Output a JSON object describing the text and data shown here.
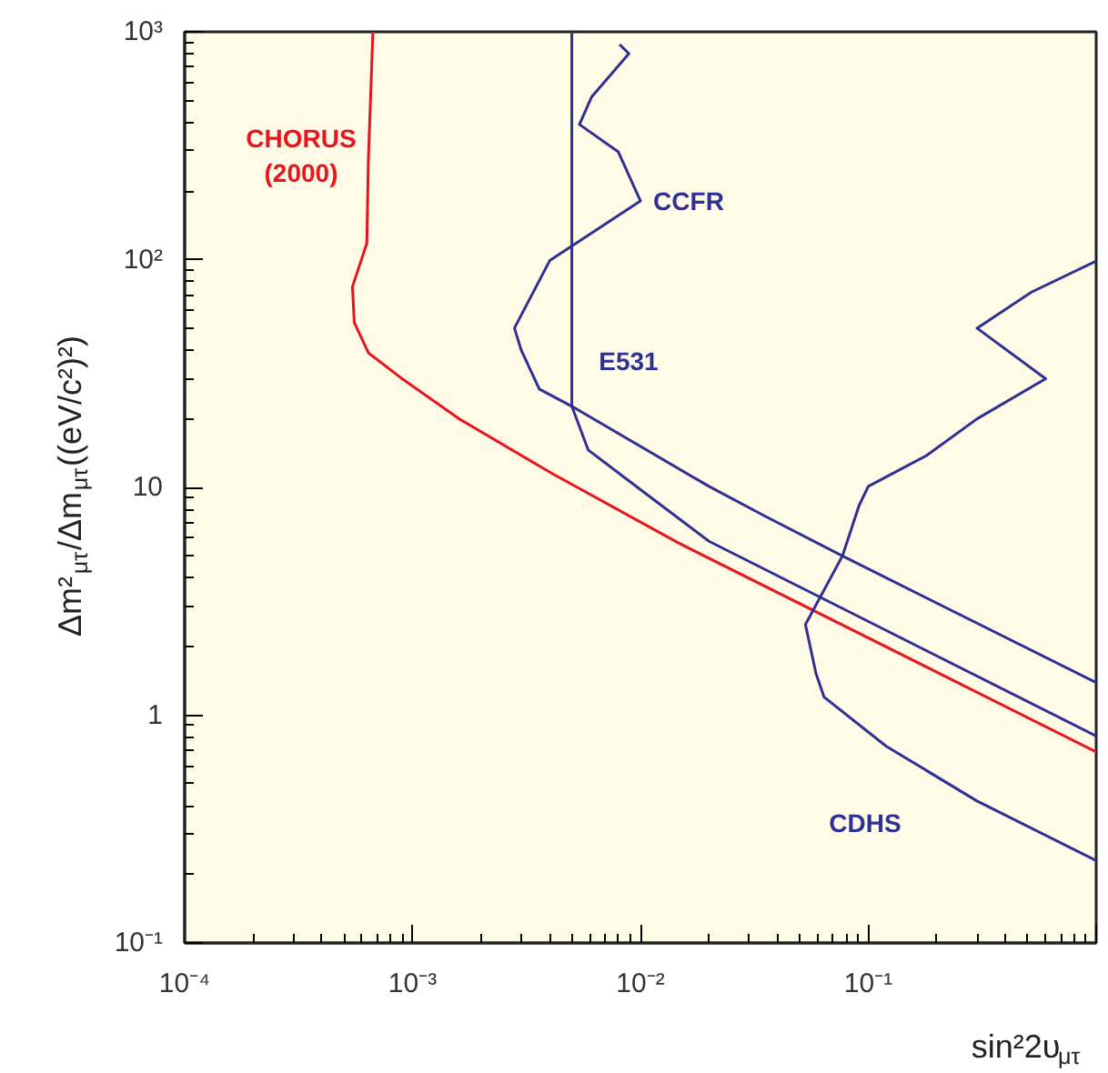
{
  "chart_data": {
    "type": "line",
    "xlabel": "sin²2υ$_{μτ}$",
    "ylabel": "Δm²$_{μτ}$/Δm$_{μτ}$((eV/c²)²)",
    "log": "xy",
    "xlim": [
      0.0001,
      1
    ],
    "ylim": [
      0.1,
      1000
    ],
    "xticks": [
      {
        "value": 0.0001,
        "label": "10⁻⁴"
      },
      {
        "value": 0.001,
        "label": "10⁻³"
      },
      {
        "value": 0.01,
        "label": "10⁻²"
      },
      {
        "value": 0.1,
        "label": "10⁻¹"
      },
      {
        "value": 1,
        "label": null
      }
    ],
    "yticks": [
      {
        "value": 0.1,
        "label": "10⁻¹"
      },
      1,
      10,
      {
        "value": 100,
        "label": "10²"
      },
      {
        "value": 1000,
        "label": "10³"
      }
    ],
    "grid": false,
    "legend": false,
    "marker": "none",
    "line_style": "solid",
    "series": [
      {
        "name": "CHORUS\n(2000)",
        "color": "#e8141e",
        "x": [
          0.00067,
          0.00064,
          0.00063,
          0.000545,
          0.000555,
          0.00064,
          0.00088,
          0.0016,
          0.0041,
          0.0147,
          1
        ],
        "values": [
          1000,
          275,
          118,
          76,
          53,
          39,
          30.5,
          20,
          11.5,
          5.7,
          0.69
        ]
      },
      {
        "name": "CCFR",
        "color": "#2e3192",
        "x": [
          0.0081,
          0.0089,
          0.0061,
          0.0054,
          0.008,
          0.01,
          0.004,
          0.0028,
          0.003,
          0.0036,
          0.005,
          0.02,
          0.035,
          0.077,
          1
        ],
        "values": [
          880,
          802,
          517,
          392,
          297,
          181,
          99,
          50,
          40,
          27,
          22.7,
          10.1,
          7.5,
          5.0,
          1.39
        ]
      },
      {
        "name": "E531",
        "color": "#2e3192",
        "x": [
          0.005,
          0.005,
          0.0059,
          0.011,
          0.02,
          1
        ],
        "values": [
          1000,
          22.7,
          14.6,
          9.1,
          5.8,
          0.81
        ]
      },
      {
        "name": "CDHS",
        "color": "#2e3192",
        "x": [
          1,
          0.52,
          0.3,
          0.6,
          0.3,
          0.18,
          0.1,
          0.091,
          0.077,
          0.053,
          0.059,
          0.064,
          0.12,
          0.3,
          1
        ],
        "values": [
          98.6,
          72,
          50,
          30,
          20,
          13.8,
          10.1,
          8.3,
          5.0,
          2.5,
          1.52,
          1.2,
          0.73,
          0.42,
          0.23
        ]
      }
    ]
  }
}
